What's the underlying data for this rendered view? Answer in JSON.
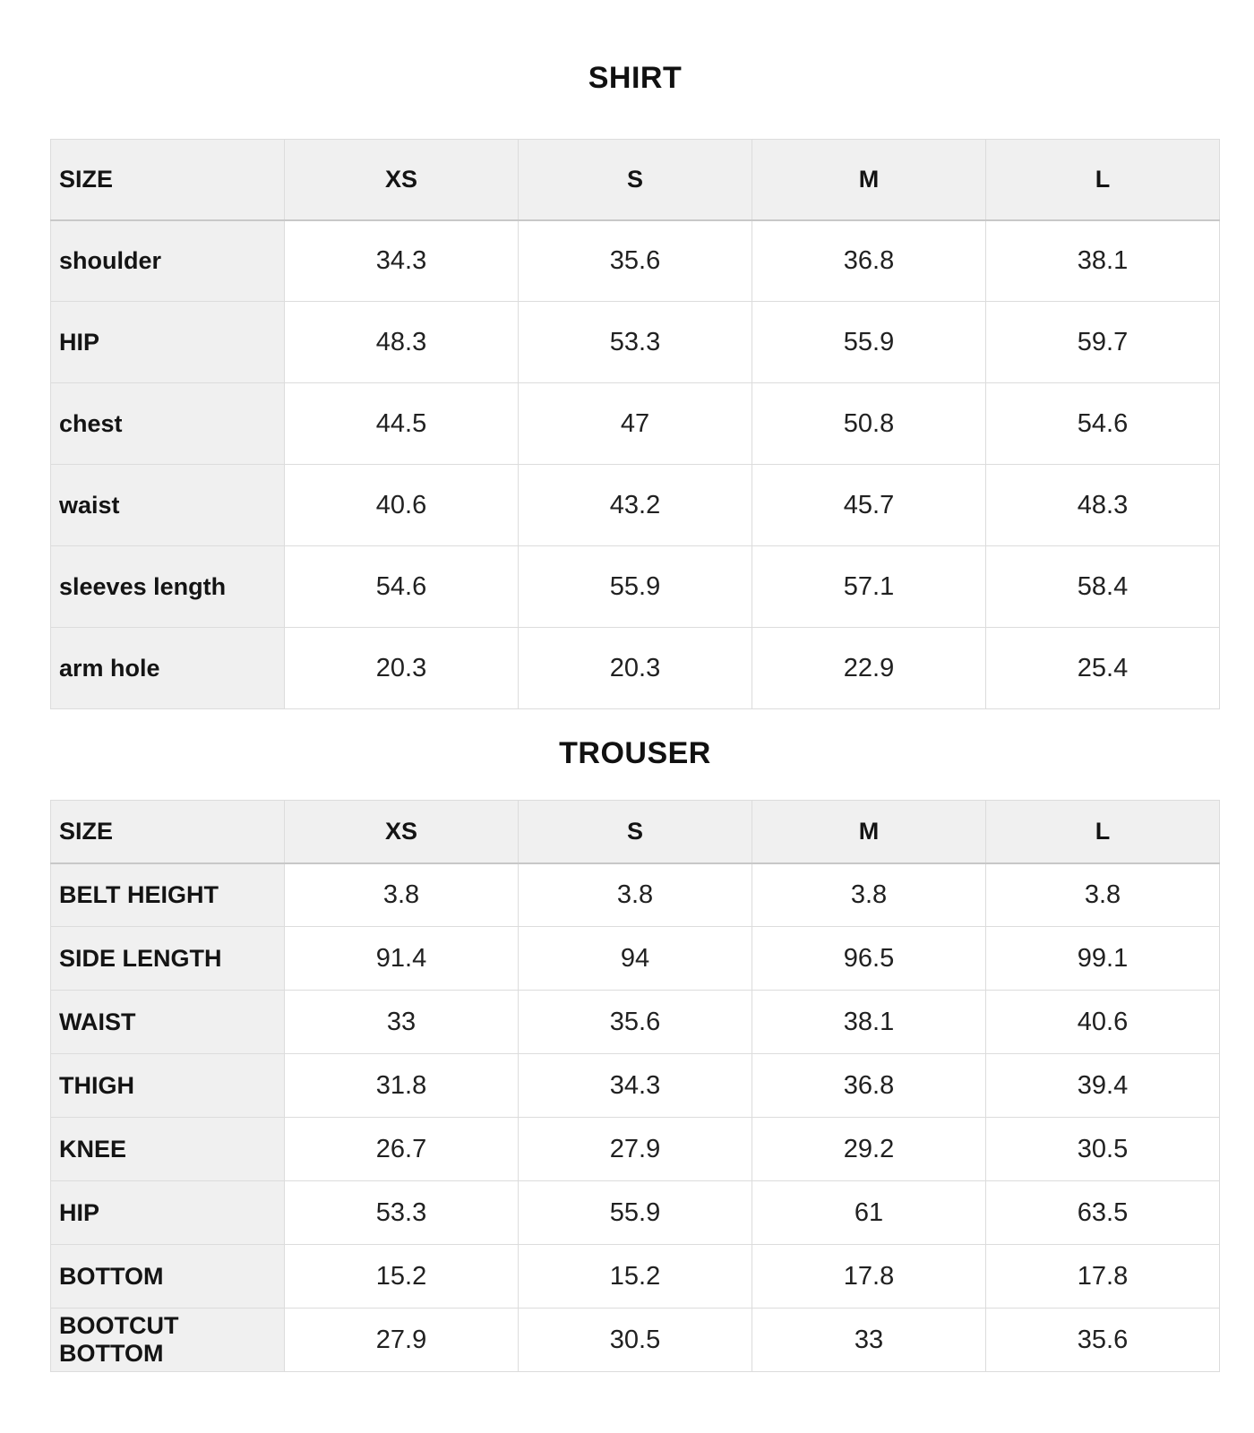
{
  "colors": {
    "page_background": "#ffffff",
    "header_cell_background": "#f0f0f0",
    "data_cell_background": "#ffffff",
    "border": "#dcdcdc",
    "header_bottom_border": "#c8c8c8",
    "text": "#1a1a1a"
  },
  "tables": [
    {
      "title": "SHIRT",
      "columns": [
        "SIZE",
        "XS",
        "S",
        "M",
        "L"
      ],
      "rows": [
        {
          "label": "shoulder",
          "values": [
            "34.3",
            "35.6",
            "36.8",
            "38.1"
          ]
        },
        {
          "label": "HIP",
          "values": [
            "48.3",
            "53.3",
            "55.9",
            "59.7"
          ]
        },
        {
          "label": "chest",
          "values": [
            "44.5",
            "47",
            "50.8",
            "54.6"
          ]
        },
        {
          "label": "waist",
          "values": [
            "40.6",
            "43.2",
            "45.7",
            "48.3"
          ]
        },
        {
          "label": "sleeves length",
          "values": [
            "54.6",
            "55.9",
            "57.1",
            "58.4"
          ]
        },
        {
          "label": "arm hole",
          "values": [
            "20.3",
            "20.3",
            "22.9",
            "25.4"
          ]
        }
      ]
    },
    {
      "title": "TROUSER",
      "columns": [
        "SIZE",
        "XS",
        "S",
        "M",
        "L"
      ],
      "rows": [
        {
          "label": "BELT HEIGHT",
          "values": [
            "3.8",
            "3.8",
            "3.8",
            "3.8"
          ]
        },
        {
          "label": "SIDE LENGTH",
          "values": [
            "91.4",
            "94",
            "96.5",
            "99.1"
          ]
        },
        {
          "label": "WAIST",
          "values": [
            "33",
            "35.6",
            "38.1",
            "40.6"
          ]
        },
        {
          "label": "THIGH",
          "values": [
            "31.8",
            "34.3",
            "36.8",
            "39.4"
          ]
        },
        {
          "label": "KNEE",
          "values": [
            "26.7",
            "27.9",
            "29.2",
            "30.5"
          ]
        },
        {
          "label": "HIP",
          "values": [
            "53.3",
            "55.9",
            "61",
            "63.5"
          ]
        },
        {
          "label": "BOTTOM",
          "values": [
            "15.2",
            "15.2",
            "17.8",
            "17.8"
          ]
        },
        {
          "label": "BOOTCUT BOTTOM",
          "values": [
            "27.9",
            "30.5",
            "33",
            "35.6"
          ]
        }
      ]
    }
  ]
}
